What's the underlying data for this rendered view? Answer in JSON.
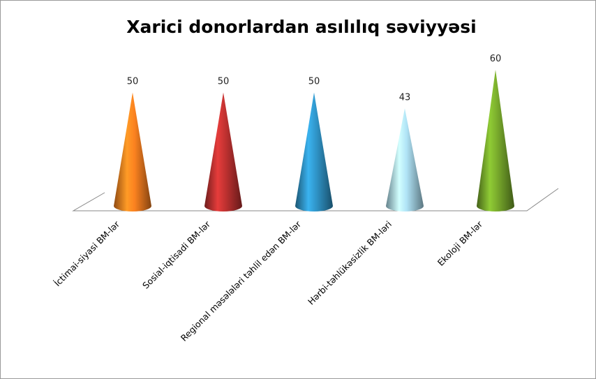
{
  "chart_data": {
    "type": "cone3d",
    "title": "Xarici donorlardan asılılıq səviyyəsi",
    "categories": [
      "İctimai-siyasi BM-lər",
      "Sosial-iqtisadi BM-lər",
      "Regional məsələləri təhlil edən BM-lər",
      "Hərbi-təhlükəsizlik BM-ləri",
      "Ekoloji BM-lər"
    ],
    "values": [
      50,
      50,
      50,
      43,
      60
    ],
    "colors": [
      "#f07c1e",
      "#b8302f",
      "#2e8fc0",
      "#a8d8ea",
      "#73a32a"
    ]
  }
}
